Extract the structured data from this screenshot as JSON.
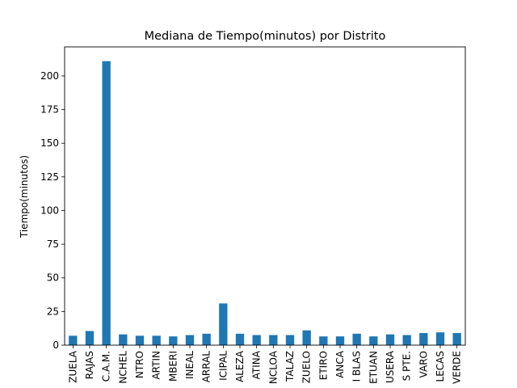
{
  "chart_data": {
    "type": "bar",
    "title": "Mediana de Tiempo(minutos) por Distrito",
    "xlabel": "",
    "ylabel": "Tiempo(minutos)",
    "categories": [
      "ZUELA",
      "RAJAS",
      "C.A.M.",
      "NCHEL",
      "NTRO",
      "ARTIN",
      "MBERI",
      "INEAL",
      "ARRAL",
      "ICIPAL",
      "ALEZA",
      "ATINA",
      "NCLOA",
      "TALAZ",
      "ZUELO",
      "ETIRO",
      "ANCA",
      "I BLAS",
      "ETUAN",
      "USERA",
      "S PTE.",
      "VARO",
      "LECAS",
      "VERDE"
    ],
    "values": [
      7,
      10.5,
      211,
      8,
      7,
      7,
      6.5,
      7.5,
      8.5,
      31,
      8.5,
      7.5,
      7.5,
      7.5,
      11,
      6.5,
      6.5,
      8.5,
      6.5,
      8,
      7.5,
      9,
      9.5,
      9
    ],
    "ylim": [
      0,
      221.6
    ],
    "yticks": [
      0,
      25,
      50,
      75,
      100,
      125,
      150,
      175,
      200
    ],
    "bar_color": "#1f77b4",
    "grid": false,
    "legend": false
  }
}
